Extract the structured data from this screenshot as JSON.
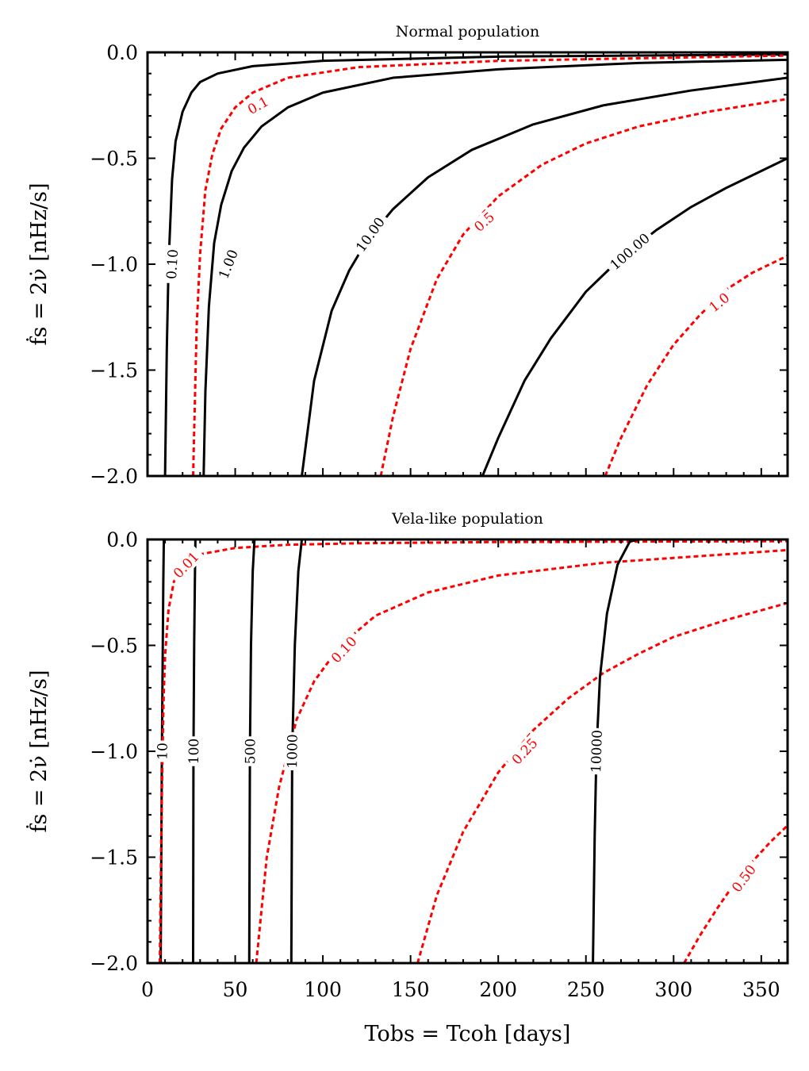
{
  "chart_data": [
    {
      "type": "line",
      "title": "Normal population",
      "ylabel": "ḟs = 2ν̇ [nHz/s]",
      "xlabel": "",
      "xlim": [
        0,
        365
      ],
      "ylim": [
        -2.0,
        0.0
      ],
      "x_ticks": [
        0,
        50,
        100,
        150,
        200,
        250,
        300,
        350
      ],
      "y_ticks": [
        0.0,
        -0.5,
        -1.0,
        -1.5,
        -2.0
      ],
      "y_tick_labels": [
        "0.0",
        "−0.5",
        "−1.0",
        "−1.5",
        "−2.0"
      ],
      "show_x_tick_labels": false,
      "grid": false,
      "series": [
        {
          "label": "0.10",
          "color": "#000000",
          "style": "solid",
          "x": [
            10,
            11,
            12,
            14,
            16,
            20,
            25,
            30,
            40,
            60,
            100,
            200,
            365
          ],
          "y": [
            -2.0,
            -1.4,
            -1.0,
            -0.6,
            -0.42,
            -0.28,
            -0.19,
            -0.14,
            -0.1,
            -0.065,
            -0.04,
            -0.02,
            -0.01
          ],
          "label_x": 14,
          "label_y": -1.0
        },
        {
          "label": "0.1",
          "color": "#ff0000",
          "style": "dotted",
          "x": [
            26,
            28,
            30,
            33,
            37,
            42,
            50,
            60,
            80,
            120,
            200,
            300,
            365
          ],
          "y": [
            -2.0,
            -1.3,
            -0.95,
            -0.65,
            -0.48,
            -0.36,
            -0.26,
            -0.19,
            -0.12,
            -0.07,
            -0.04,
            -0.025,
            -0.015
          ],
          "label_x": 63,
          "label_y": -0.25
        },
        {
          "label": "1.00",
          "color": "#000000",
          "style": "solid",
          "x": [
            32,
            33,
            35,
            38,
            42,
            48,
            55,
            65,
            80,
            100,
            140,
            200,
            280,
            365
          ],
          "y": [
            -2.0,
            -1.6,
            -1.2,
            -0.9,
            -0.72,
            -0.56,
            -0.45,
            -0.35,
            -0.26,
            -0.19,
            -0.12,
            -0.08,
            -0.05,
            -0.035
          ],
          "label_x": 46,
          "label_y": -1.0
        },
        {
          "label": "10.00",
          "color": "#000000",
          "style": "solid",
          "x": [
            88,
            95,
            105,
            115,
            125,
            140,
            160,
            185,
            220,
            260,
            310,
            365
          ],
          "y": [
            -2.0,
            -1.55,
            -1.22,
            -1.03,
            -0.89,
            -0.74,
            -0.59,
            -0.46,
            -0.34,
            -0.25,
            -0.18,
            -0.12
          ],
          "label_x": 127,
          "label_y": -0.86
        },
        {
          "label": "0.5",
          "color": "#ff0000",
          "style": "dotted",
          "x": [
            133,
            140,
            150,
            165,
            180,
            200,
            225,
            250,
            280,
            320,
            365
          ],
          "y": [
            -2.0,
            -1.72,
            -1.4,
            -1.07,
            -0.86,
            -0.68,
            -0.53,
            -0.43,
            -0.35,
            -0.28,
            -0.22
          ],
          "label_x": 192,
          "label_y": -0.8
        },
        {
          "label": "100.00",
          "color": "#000000",
          "style": "solid",
          "x": [
            191,
            200,
            215,
            230,
            250,
            270,
            290,
            310,
            330,
            350,
            365
          ],
          "y": [
            -2.0,
            -1.82,
            -1.55,
            -1.35,
            -1.13,
            -0.97,
            -0.84,
            -0.73,
            -0.64,
            -0.56,
            -0.5
          ],
          "label_x": 275,
          "label_y": -0.94
        },
        {
          "label": "1.0",
          "color": "#ff0000",
          "style": "dotted",
          "x": [
            261,
            270,
            285,
            300,
            315,
            330,
            345,
            365
          ],
          "y": [
            -2.0,
            -1.82,
            -1.57,
            -1.38,
            -1.24,
            -1.12,
            -1.04,
            -0.96
          ],
          "label_x": 326,
          "label_y": -1.18
        }
      ]
    },
    {
      "type": "line",
      "title": "Vela-like population",
      "ylabel": "ḟs = 2ν̇ [nHz/s]",
      "xlabel": "Tobs = Tcoh [days]",
      "xlim": [
        0,
        365
      ],
      "ylim": [
        -2.0,
        0.0
      ],
      "x_ticks": [
        0,
        50,
        100,
        150,
        200,
        250,
        300,
        350
      ],
      "x_tick_labels": [
        "0",
        "50",
        "100",
        "150",
        "200",
        "250",
        "300",
        "350"
      ],
      "y_ticks": [
        0.0,
        -0.5,
        -1.0,
        -1.5,
        -2.0
      ],
      "y_tick_labels": [
        "0.0",
        "−0.5",
        "−1.0",
        "−1.5",
        "−2.0"
      ],
      "show_x_tick_labels": true,
      "grid": false,
      "series": [
        {
          "label": "10",
          "color": "#000000",
          "style": "solid",
          "x": [
            7.5,
            8.2,
            8.7,
            9.0,
            9.3
          ],
          "y": [
            -2.0,
            -1.0,
            -0.5,
            -0.2,
            0.0
          ],
          "label_x": 8.4,
          "label_y": -1.0
        },
        {
          "label": "0.01",
          "color": "#ff0000",
          "style": "dotted",
          "x": [
            7,
            8,
            9,
            10,
            12,
            15,
            20,
            30,
            50,
            80,
            120,
            200,
            365
          ],
          "y": [
            -2.0,
            -1.3,
            -0.8,
            -0.55,
            -0.33,
            -0.2,
            -0.12,
            -0.07,
            -0.04,
            -0.025,
            -0.018,
            -0.012,
            -0.008
          ],
          "label_x": 22,
          "label_y": -0.12
        },
        {
          "label": "100",
          "color": "#000000",
          "style": "solid",
          "x": [
            26,
            26.2,
            26.6,
            27.0,
            27.3
          ],
          "y": [
            -2.0,
            -1.0,
            -0.5,
            -0.2,
            0.0
          ],
          "label_x": 26.3,
          "label_y": -1.0
        },
        {
          "label": "500",
          "color": "#000000",
          "style": "solid",
          "x": [
            58,
            58.4,
            59,
            60,
            61
          ],
          "y": [
            -2.0,
            -1.0,
            -0.5,
            -0.15,
            0.0
          ],
          "label_x": 58.5,
          "label_y": -1.0
        },
        {
          "label": "1000",
          "color": "#000000",
          "style": "solid",
          "x": [
            82,
            82.5,
            84,
            86,
            88
          ],
          "y": [
            -2.0,
            -1.0,
            -0.5,
            -0.15,
            0.0
          ],
          "label_x": 82.5,
          "label_y": -1.0
        },
        {
          "label": "0.10",
          "color": "#ff0000",
          "style": "dotted",
          "x": [
            62,
            68,
            75,
            85,
            95,
            110,
            130,
            160,
            200,
            260,
            365
          ],
          "y": [
            -2.0,
            -1.5,
            -1.17,
            -0.85,
            -0.67,
            -0.5,
            -0.36,
            -0.25,
            -0.17,
            -0.11,
            -0.05
          ],
          "label_x": 112,
          "label_y": -0.52
        },
        {
          "label": "0.25",
          "color": "#ff0000",
          "style": "dotted",
          "x": [
            154,
            165,
            180,
            200,
            220,
            240,
            260,
            280,
            300,
            330,
            365
          ],
          "y": [
            -2.0,
            -1.68,
            -1.38,
            -1.1,
            -0.9,
            -0.75,
            -0.63,
            -0.54,
            -0.46,
            -0.38,
            -0.3
          ],
          "label_x": 215,
          "label_y": -1.0
        },
        {
          "label": "10000",
          "color": "#000000",
          "style": "solid",
          "x": [
            254,
            255,
            256,
            258,
            262,
            268,
            275,
            280
          ],
          "y": [
            -2.0,
            -1.4,
            -1.0,
            -0.65,
            -0.35,
            -0.12,
            -0.01,
            0.0
          ],
          "label_x": 256,
          "label_y": -1.0
        },
        {
          "label": "0.50",
          "color": "#ff0000",
          "style": "dotted",
          "x": [
            306,
            315,
            325,
            335,
            345,
            355,
            365
          ],
          "y": [
            -2.0,
            -1.87,
            -1.74,
            -1.62,
            -1.52,
            -1.43,
            -1.35
          ],
          "label_x": 340,
          "label_y": -1.6
        }
      ]
    }
  ]
}
